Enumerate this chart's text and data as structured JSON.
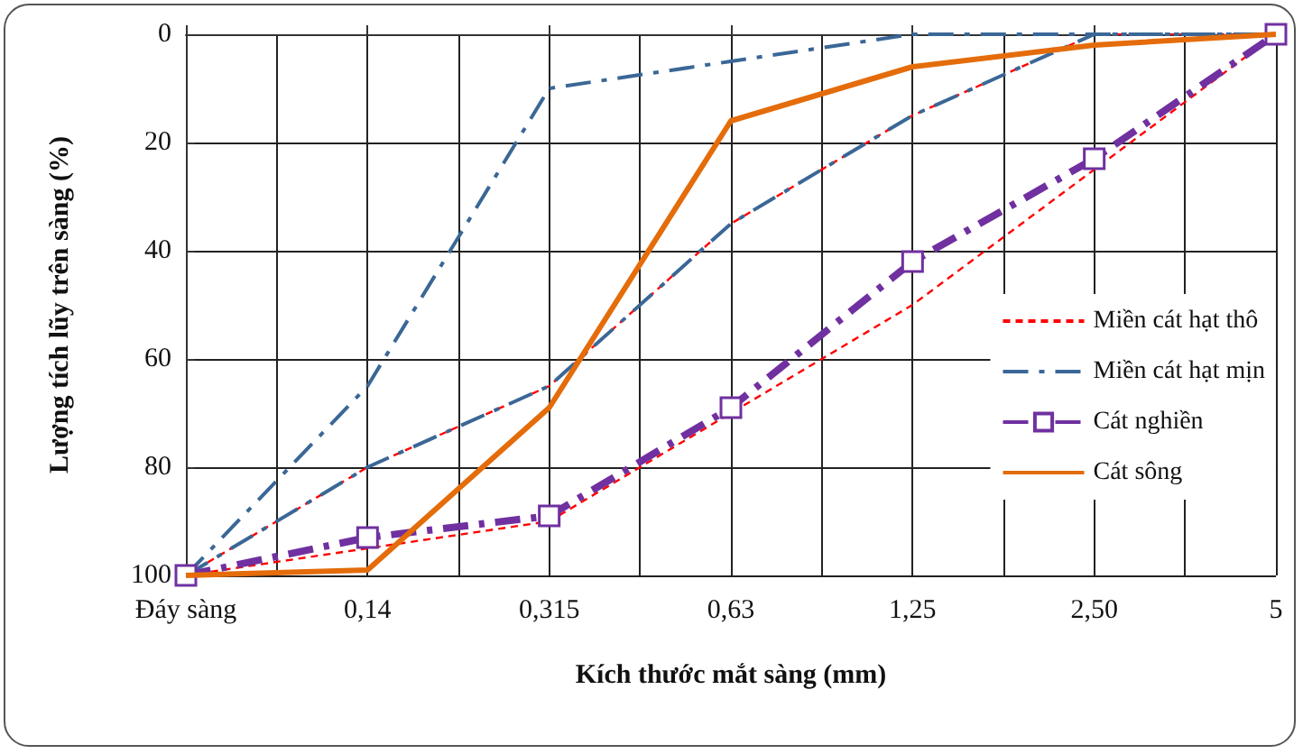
{
  "chart_data": {
    "type": "line",
    "xlabel": "Kích thước mắt sàng (mm)",
    "ylabel": "Lượng tích lũy trên sàng (%)",
    "categories": [
      "Đáy sàng",
      "0,14",
      "0,315",
      "0,63",
      "1,25",
      "2,50",
      "5"
    ],
    "ylim": [
      100,
      0
    ],
    "yticks": [
      0,
      20,
      40,
      60,
      80,
      100
    ],
    "grid": true,
    "legend": "right",
    "marker": "none",
    "series": [
      {
        "name": "Miền cát hạt thô",
        "color": "#ff0000",
        "line_style": "dashed",
        "values": [
          100,
          95,
          90,
          70,
          50,
          25,
          0
        ]
      },
      {
        "color": "#ff0000",
        "line_style": "dashed",
        "values": [
          100,
          80,
          65,
          35,
          15,
          0,
          0
        ]
      },
      {
        "name": "Miền cát hạt mịn",
        "color": "#3a6796",
        "line_style": "dashdot",
        "values": [
          100,
          80,
          65,
          35,
          15,
          0,
          0
        ]
      },
      {
        "color": "#3a6796",
        "line_style": "dashdot",
        "values": [
          100,
          65,
          10,
          5,
          0,
          0,
          0
        ]
      },
      {
        "name": "Cát nghiền",
        "color": "#7030a0",
        "line_style": "dashdot",
        "marker": "square",
        "values": [
          100,
          93,
          89,
          69,
          42,
          23,
          0
        ]
      },
      {
        "name": "Cát sông",
        "color": "#e46c0a",
        "line_style": "solid",
        "values": [
          100,
          99,
          69,
          16,
          6,
          2,
          0
        ]
      }
    ]
  }
}
